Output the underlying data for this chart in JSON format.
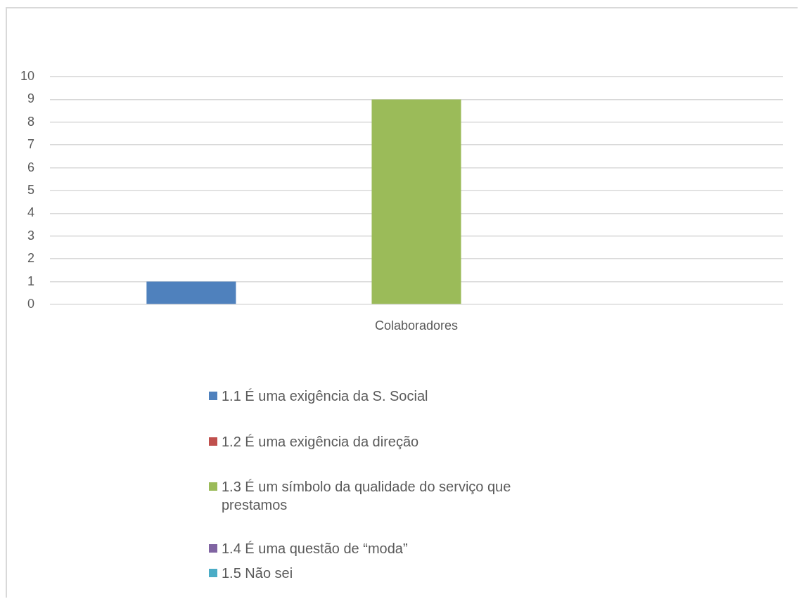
{
  "chart_data": {
    "type": "bar",
    "categories": [
      "Colaboradores"
    ],
    "series": [
      {
        "name": "1.1 É uma exigência da S. Social",
        "color": "#4f81bd",
        "values": [
          1
        ]
      },
      {
        "name": "1.2 É uma exigência da direção",
        "color": "#c0504d",
        "values": [
          0
        ]
      },
      {
        "name": "1.3 É um símbolo da qualidade do serviço que prestamos",
        "color": "#9bbb59",
        "values": [
          9
        ]
      },
      {
        "name": "1.4 É uma questão de “moda”",
        "color": "#8064a2",
        "values": [
          0
        ]
      },
      {
        "name": "1.5 Não sei",
        "color": "#4bacc6",
        "values": [
          0
        ]
      }
    ],
    "ylim": [
      0,
      10
    ],
    "yticks": [
      0,
      1,
      2,
      3,
      4,
      5,
      6,
      7,
      8,
      9,
      10
    ],
    "grid": "y",
    "legend": "bottom"
  }
}
